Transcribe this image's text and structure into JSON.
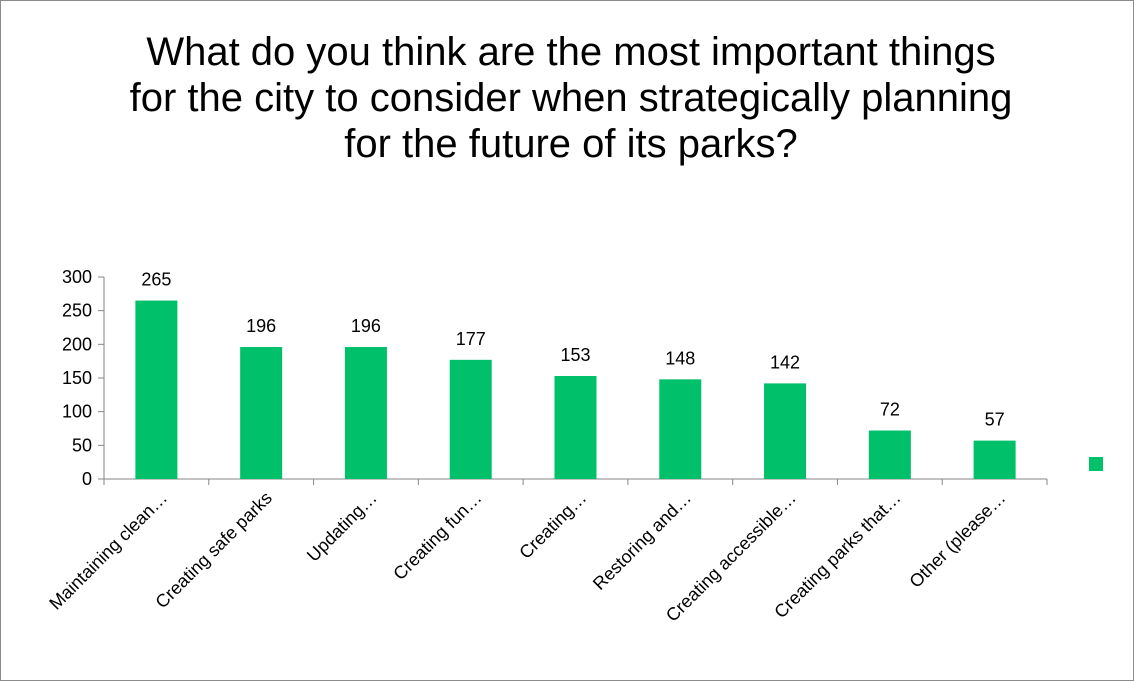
{
  "chart_data": {
    "type": "bar",
    "title": "What do you think are the most important things for the city to consider when strategically planning for the future of its parks?",
    "xlabel": "",
    "ylabel": "",
    "ylim": [
      0,
      300
    ],
    "yticks": [
      0,
      50,
      100,
      150,
      200,
      250,
      300
    ],
    "categories": [
      "Maintaining clean…",
      "Creating safe parks",
      "Updating…",
      "Creating fun…",
      "Creating…",
      "Restoring and…",
      "Creating accessible…",
      "Creating parks that…",
      "Other (please…"
    ],
    "values": [
      265,
      196,
      196,
      177,
      153,
      148,
      142,
      72,
      57
    ],
    "data_labels": [
      "265",
      "196",
      "196",
      "177",
      "153",
      "148",
      "142",
      "72",
      "57"
    ],
    "grid": false,
    "legend": "right",
    "bar_color": "#00c06a",
    "axis_color": "#868686"
  }
}
